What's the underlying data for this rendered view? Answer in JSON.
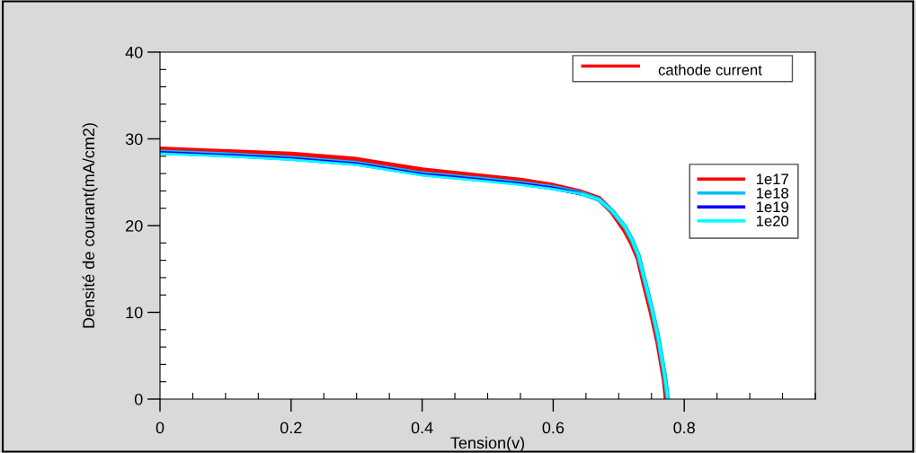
{
  "chart_data": {
    "type": "line",
    "xlabel": "Tension(v)",
    "ylabel": "Densité de courant(mA/cm2)",
    "annotations": [
      "cathode current"
    ],
    "xlim": [
      0,
      1.0
    ],
    "xticks": [
      0,
      0.2,
      0.4,
      0.6,
      0.8
    ],
    "ylim": [
      0,
      40
    ],
    "yticks": [
      0,
      10,
      20,
      30,
      40
    ],
    "grid": false,
    "legend": "right",
    "line_style": "solid",
    "series": [
      {
        "name": "1e17",
        "color": "#ff0000",
        "x": [
          0,
          0.1,
          0.2,
          0.3,
          0.4,
          0.5,
          0.55,
          0.6,
          0.64,
          0.67,
          0.69,
          0.71,
          0.72,
          0.73,
          0.74,
          0.75,
          0.76,
          0.77,
          0.773
        ],
        "values": [
          28.8,
          28.5,
          28.2,
          27.6,
          26.4,
          25.6,
          25.2,
          24.6,
          23.9,
          23.1,
          21.6,
          19.4,
          18.0,
          16.2,
          13.0,
          10.0,
          6.6,
          2.2,
          0
        ]
      },
      {
        "name": "1e18",
        "color": "#00c0f0",
        "x": [
          0,
          0.1,
          0.2,
          0.3,
          0.4,
          0.5,
          0.55,
          0.6,
          0.64,
          0.67,
          0.69,
          0.71,
          0.72,
          0.73,
          0.74,
          0.75,
          0.76,
          0.77,
          0.775
        ],
        "values": [
          28.5,
          28.2,
          27.8,
          27.2,
          26.0,
          25.3,
          24.9,
          24.4,
          23.8,
          23.0,
          21.7,
          19.8,
          18.4,
          16.6,
          13.6,
          10.6,
          7.2,
          2.8,
          0
        ]
      },
      {
        "name": "1e19",
        "color": "#0000ff",
        "x": [
          0,
          0.1,
          0.2,
          0.3,
          0.4,
          0.5,
          0.55,
          0.6,
          0.64
        ],
        "values": [
          28.4,
          28.1,
          27.7,
          27.1,
          25.9,
          25.2,
          24.8,
          24.3,
          23.7
        ]
      },
      {
        "name": "1e20",
        "color": "#00ffff",
        "x": [
          0,
          0.1,
          0.2,
          0.3,
          0.4,
          0.5,
          0.55,
          0.6,
          0.64,
          0.67,
          0.69,
          0.71,
          0.72,
          0.73,
          0.74,
          0.75,
          0.76,
          0.77,
          0.775
        ],
        "values": [
          28.3,
          28.0,
          27.6,
          27.0,
          25.8,
          25.1,
          24.7,
          24.2,
          23.7,
          23.0,
          21.7,
          19.8,
          18.4,
          16.6,
          13.6,
          10.6,
          7.2,
          2.8,
          0
        ]
      }
    ]
  }
}
